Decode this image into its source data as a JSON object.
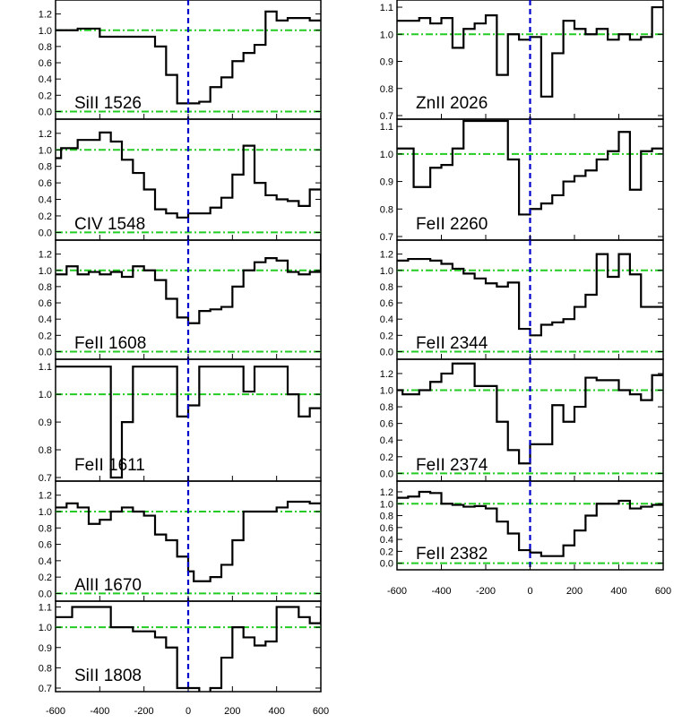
{
  "chart_data": {
    "type": "line",
    "layout": "two columns of stacked absorption-line panels, histogram (step) profiles",
    "x_ticks": [
      "-600",
      "-400",
      "-200",
      "0",
      "200",
      "400",
      "600"
    ],
    "xlim": [
      -600,
      600
    ],
    "reference_velocity": 0,
    "grid": false,
    "colors": {
      "profile": "#000000",
      "reference_line": "#0000cc",
      "guide_lines": "#22cc22"
    },
    "panels": [
      {
        "label": "SiII 1526",
        "column": 0,
        "ylim": [
          -0.05,
          1.35
        ],
        "guides": [
          0.0,
          1.0
        ],
        "y_ticks": [
          "0.0",
          "0.2",
          "0.4",
          "0.6",
          "0.8",
          "1.0",
          "1.2"
        ],
        "x": [
          -600,
          -550,
          -500,
          -450,
          -400,
          -350,
          -300,
          -250,
          -200,
          -150,
          -100,
          -50,
          0,
          50,
          100,
          150,
          200,
          250,
          300,
          350,
          400,
          450,
          500,
          550,
          600
        ],
        "y": [
          1.0,
          1.0,
          1.02,
          1.02,
          0.92,
          0.92,
          0.92,
          0.92,
          0.92,
          0.8,
          0.45,
          0.1,
          0.1,
          0.12,
          0.3,
          0.42,
          0.62,
          0.72,
          0.82,
          1.23,
          1.12,
          1.15,
          1.15,
          1.12,
          1.12
        ]
      },
      {
        "label": "CIV 1548",
        "column": 0,
        "ylim": [
          -0.05,
          1.35
        ],
        "guides": [
          0.0,
          1.0
        ],
        "y_ticks": [
          "0.0",
          "0.2",
          "0.4",
          "0.6",
          "0.8",
          "1.0",
          "1.2"
        ],
        "x": [
          -600,
          -575,
          -550,
          -500,
          -450,
          -400,
          -350,
          -300,
          -250,
          -200,
          -150,
          -100,
          -50,
          0,
          50,
          100,
          150,
          200,
          250,
          300,
          350,
          400,
          450,
          500,
          550,
          600
        ],
        "y": [
          0.9,
          1.02,
          1.02,
          1.12,
          1.12,
          1.21,
          1.1,
          0.88,
          0.72,
          0.52,
          0.28,
          0.23,
          0.18,
          0.23,
          0.23,
          0.3,
          0.42,
          0.7,
          1.05,
          0.6,
          0.45,
          0.4,
          0.38,
          0.32,
          0.52,
          0.52
        ]
      },
      {
        "label": "FeII 1608",
        "column": 0,
        "ylim": [
          -0.05,
          1.35
        ],
        "guides": [
          0.0,
          1.0
        ],
        "y_ticks": [
          "0.0",
          "0.2",
          "0.4",
          "0.6",
          "0.8",
          "1.0",
          "1.2"
        ],
        "x": [
          -600,
          -550,
          -500,
          -450,
          -400,
          -350,
          -300,
          -250,
          -200,
          -150,
          -100,
          -50,
          0,
          50,
          100,
          150,
          200,
          250,
          300,
          350,
          400,
          450,
          500,
          550,
          600
        ],
        "y": [
          0.95,
          1.05,
          0.95,
          0.98,
          0.95,
          0.98,
          0.92,
          1.05,
          1.0,
          0.88,
          0.65,
          0.42,
          0.35,
          0.5,
          0.52,
          0.55,
          0.8,
          1.0,
          1.1,
          1.15,
          1.12,
          0.98,
          0.95,
          0.98,
          1.2
        ]
      },
      {
        "label": "FeII 1611",
        "column": 0,
        "ylim": [
          0.7,
          1.12
        ],
        "guides": [
          1.0
        ],
        "y_ticks": [
          "0.7",
          "0.8",
          "0.9",
          "1.0",
          "1.1"
        ],
        "x": [
          -600,
          -350,
          -300,
          -250,
          -200,
          -150,
          -100,
          -50,
          0,
          50,
          100,
          150,
          200,
          250,
          300,
          350,
          400,
          450,
          500,
          550,
          600
        ],
        "y": [
          1.1,
          0.7,
          0.9,
          1.1,
          1.1,
          1.1,
          1.1,
          0.92,
          0.96,
          1.1,
          1.1,
          1.1,
          1.1,
          1.01,
          1.1,
          1.1,
          1.1,
          1.0,
          0.92,
          0.95,
          0.95
        ]
      },
      {
        "label": "AlII 1670",
        "column": 0,
        "ylim": [
          -0.05,
          1.35
        ],
        "guides": [
          0.0,
          1.0
        ],
        "y_ticks": [
          "0.0",
          "0.2",
          "0.4",
          "0.6",
          "0.8",
          "1.0",
          "1.2"
        ],
        "x": [
          -600,
          -550,
          -500,
          -450,
          -400,
          -350,
          -300,
          -250,
          -200,
          -150,
          -100,
          -50,
          0,
          25,
          75,
          100,
          150,
          200,
          250,
          300,
          350,
          400,
          450,
          500,
          550,
          600
        ],
        "y": [
          1.05,
          1.1,
          1.05,
          0.85,
          0.9,
          1.0,
          1.05,
          1.0,
          0.95,
          0.72,
          0.65,
          0.45,
          0.27,
          0.15,
          0.15,
          0.2,
          0.35,
          0.65,
          1.0,
          1.0,
          1.0,
          1.05,
          1.12,
          1.12,
          1.1,
          1.1
        ]
      },
      {
        "label": "SiII 1808",
        "column": 0,
        "ylim": [
          0.7,
          1.12
        ],
        "guides": [
          1.0
        ],
        "y_ticks": [
          "0.7",
          "0.8",
          "0.9",
          "1.0",
          "1.1"
        ],
        "x": [
          -600,
          -575,
          -525,
          -500,
          -400,
          -350,
          -300,
          -250,
          -200,
          -150,
          -100,
          -50,
          0,
          50,
          100,
          150,
          200,
          250,
          300,
          350,
          400,
          450,
          500,
          550,
          600
        ],
        "y": [
          1.05,
          1.05,
          1.1,
          1.1,
          1.1,
          1.0,
          1.0,
          0.98,
          0.98,
          0.95,
          0.9,
          0.7,
          0.7,
          0.6,
          0.7,
          0.85,
          1.0,
          0.95,
          0.91,
          0.93,
          1.1,
          1.1,
          1.05,
          1.02,
          1.1
        ]
      },
      {
        "label": "ZnII 2026",
        "column": 1,
        "ylim": [
          0.7,
          1.12
        ],
        "guides": [
          1.0
        ],
        "y_ticks": [
          "0.7",
          "0.8",
          "0.9",
          "1.0",
          "1.1"
        ],
        "x": [
          -600,
          -525,
          -500,
          -450,
          -400,
          -350,
          -300,
          -250,
          -200,
          -150,
          -100,
          -50,
          0,
          50,
          100,
          150,
          200,
          250,
          300,
          350,
          400,
          450,
          500,
          550,
          600
        ],
        "y": [
          1.05,
          1.05,
          1.06,
          1.04,
          1.06,
          0.95,
          1.02,
          1.04,
          1.07,
          0.85,
          1.0,
          0.98,
          0.99,
          0.77,
          0.93,
          1.05,
          1.02,
          1.0,
          1.02,
          0.98,
          1.0,
          0.98,
          0.99,
          1.1,
          1.1
        ]
      },
      {
        "label": "FeII 2260",
        "column": 1,
        "ylim": [
          0.7,
          1.12
        ],
        "guides": [
          1.0
        ],
        "y_ticks": [
          "0.7",
          "0.8",
          "0.9",
          "1.0",
          "1.1"
        ],
        "x": [
          -600,
          -575,
          -525,
          -500,
          -450,
          -400,
          -350,
          -300,
          -250,
          -200,
          -150,
          -100,
          -50,
          0,
          50,
          100,
          150,
          200,
          250,
          300,
          350,
          400,
          450,
          500,
          550,
          600
        ],
        "y": [
          1.02,
          1.02,
          0.88,
          0.88,
          0.95,
          0.96,
          1.02,
          1.12,
          1.12,
          1.12,
          1.12,
          0.98,
          0.78,
          0.8,
          0.82,
          0.85,
          0.9,
          0.92,
          0.94,
          0.98,
          1.01,
          1.08,
          0.87,
          1.01,
          1.02,
          1.02
        ]
      },
      {
        "label": "FeII 2344",
        "column": 1,
        "ylim": [
          -0.05,
          1.35
        ],
        "guides": [
          0.0,
          1.0
        ],
        "y_ticks": [
          "0.0",
          "0.2",
          "0.4",
          "0.6",
          "0.8",
          "1.0",
          "1.2"
        ],
        "x": [
          -600,
          -550,
          -500,
          -450,
          -400,
          -350,
          -300,
          -250,
          -200,
          -150,
          -100,
          -50,
          0,
          50,
          100,
          150,
          200,
          250,
          300,
          350,
          400,
          450,
          500,
          550,
          600
        ],
        "y": [
          1.12,
          1.14,
          1.14,
          1.12,
          1.08,
          1.02,
          0.96,
          0.9,
          0.84,
          0.8,
          0.85,
          0.28,
          0.2,
          0.33,
          0.36,
          0.4,
          0.55,
          0.7,
          1.2,
          0.92,
          1.2,
          0.95,
          0.55,
          0.55,
          0.55
        ]
      },
      {
        "label": "FeII 2374",
        "column": 1,
        "ylim": [
          -0.05,
          1.35
        ],
        "guides": [
          0.0,
          1.0
        ],
        "y_ticks": [
          "0.0",
          "0.2",
          "0.4",
          "0.6",
          "0.8",
          "1.0",
          "1.2"
        ],
        "x": [
          -600,
          -575,
          -550,
          -500,
          -450,
          -400,
          -350,
          -300,
          -250,
          -200,
          -150,
          -100,
          -50,
          0,
          50,
          100,
          150,
          200,
          250,
          300,
          350,
          400,
          450,
          500,
          550,
          600
        ],
        "y": [
          1.0,
          0.95,
          0.95,
          1.0,
          1.1,
          1.2,
          1.32,
          1.32,
          1.05,
          1.05,
          0.62,
          0.28,
          0.12,
          0.35,
          0.35,
          0.82,
          0.62,
          0.8,
          1.15,
          1.12,
          1.12,
          1.0,
          0.95,
          0.88,
          1.18,
          1.18
        ]
      },
      {
        "label": "FeII 2382",
        "column": 1,
        "ylim": [
          -0.05,
          1.35
        ],
        "guides": [
          0.0,
          1.0
        ],
        "y_ticks": [
          "0.0",
          "0.2",
          "0.4",
          "0.6",
          "0.8",
          "1.0",
          "1.2"
        ],
        "x": [
          -600,
          -550,
          -500,
          -450,
          -400,
          -350,
          -300,
          -250,
          -200,
          -150,
          -100,
          -50,
          0,
          50,
          100,
          150,
          200,
          250,
          300,
          350,
          400,
          450,
          500,
          550,
          600
        ],
        "y": [
          1.1,
          1.12,
          1.2,
          1.18,
          1.0,
          0.98,
          0.95,
          0.96,
          0.92,
          0.7,
          0.5,
          0.22,
          0.18,
          0.12,
          0.12,
          0.3,
          0.55,
          0.8,
          1.0,
          1.0,
          1.05,
          0.92,
          0.95,
          0.98,
          0.98
        ]
      }
    ]
  }
}
